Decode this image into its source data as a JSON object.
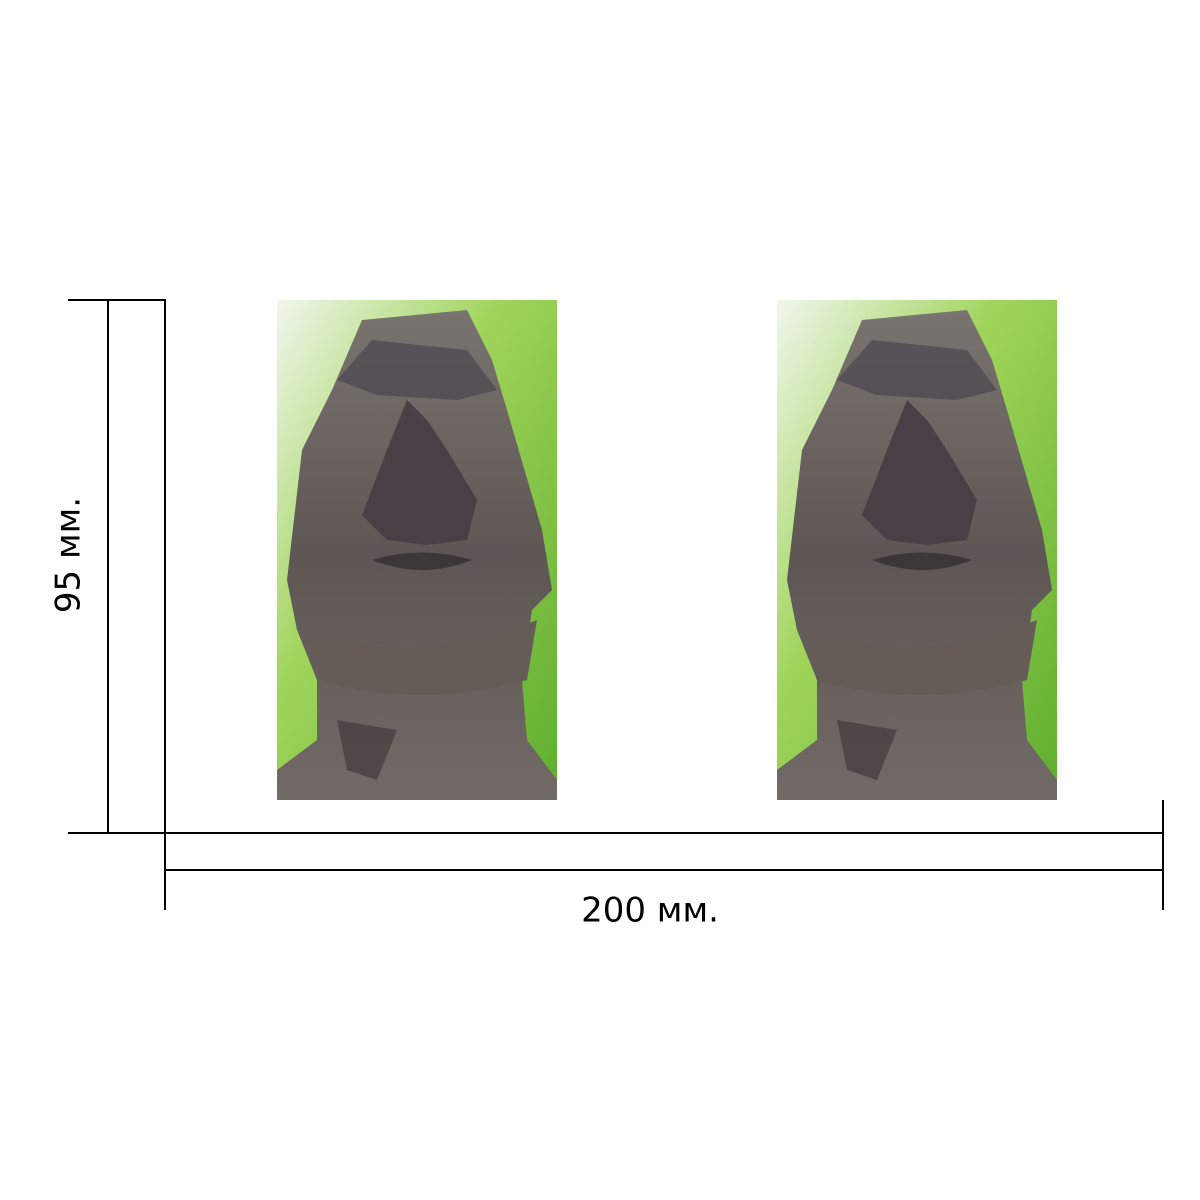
{
  "height_label": "95 мм.",
  "width_label": "200 мм."
}
